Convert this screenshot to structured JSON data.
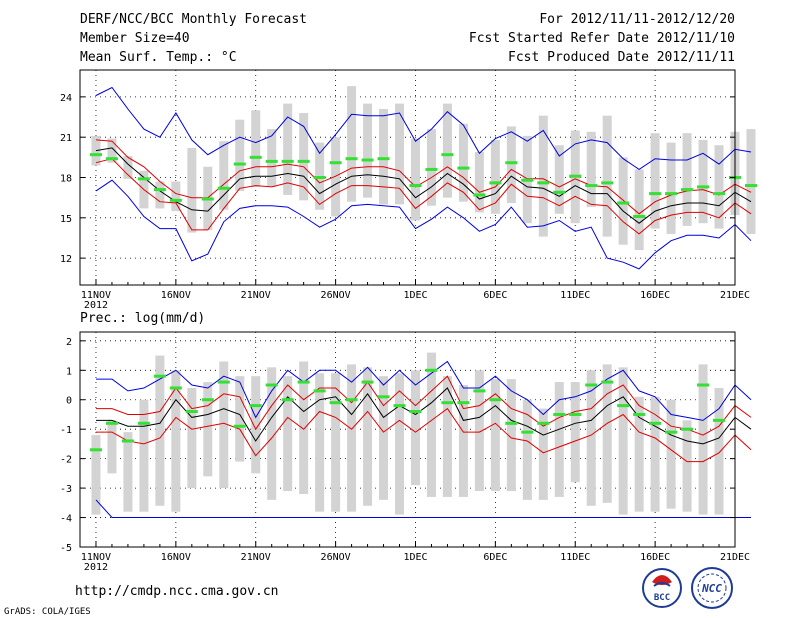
{
  "header": {
    "title": "DERF/NCC/BCC Monthly Forecast",
    "member_size": "Member Size=40",
    "variable": "Mean Surf. Temp.: °C",
    "period": "For 2012/11/11-2012/12/20",
    "started": "Fcst Started Refer Date 2012/11/10",
    "produced": "Fcst Produced Date 2012/11/11"
  },
  "footer": {
    "url": "http://cmdp.ncc.cma.gov.cn",
    "credit": "GrADS: COLA/IGES",
    "logo_bcc": "BCC",
    "logo_ncc": "NCC"
  },
  "colors": {
    "box": "#d3d3d3",
    "max": "#0000e0",
    "upper": "#e00000",
    "mean": "#000000",
    "median": "#33e033"
  },
  "chart_data": [
    {
      "type": "box",
      "title": "Mean Surf. Temp.: °C",
      "x_ticks": [
        "11NOV",
        "16NOV",
        "21NOV",
        "26NOV",
        "1DEC",
        "6DEC",
        "11DEC",
        "16DEC",
        "21DEC"
      ],
      "x_tick_days": [
        0,
        5,
        10,
        15,
        20,
        25,
        30,
        35,
        40
      ],
      "year_label": "2012",
      "ylim": [
        10,
        26
      ],
      "y_ticks": [
        12,
        15,
        18,
        21,
        24
      ],
      "series": [
        {
          "name": "max",
          "values": [
            24.1,
            24.7,
            23.1,
            21.6,
            21.0,
            22.8,
            20.8,
            19.7,
            20.4,
            21.0,
            20.6,
            21.1,
            22.5,
            21.8,
            19.8,
            21.2,
            22.7,
            22.6,
            22.6,
            22.8,
            20.7,
            21.6,
            22.9,
            21.9,
            19.8,
            20.9,
            21.4,
            20.7,
            21.5,
            19.6,
            20.5,
            20.8,
            20.6,
            19.4,
            18.6,
            19.4,
            19.3,
            19.3,
            19.8,
            19.0,
            20.1,
            19.9
          ]
        },
        {
          "name": "upper",
          "values": [
            20.8,
            20.7,
            19.5,
            18.8,
            17.7,
            16.8,
            16.5,
            16.5,
            17.5,
            18.5,
            18.8,
            18.8,
            19.0,
            18.8,
            17.6,
            18.1,
            18.7,
            18.8,
            18.8,
            18.5,
            17.3,
            18.0,
            18.8,
            18.0,
            16.9,
            17.3,
            18.6,
            17.9,
            17.9,
            17.3,
            17.9,
            17.4,
            17.3,
            16.3,
            15.3,
            16.2,
            16.7,
            17.0,
            17.1,
            16.7,
            17.5,
            16.9
          ]
        },
        {
          "name": "mean",
          "values": [
            20.0,
            20.2,
            19.0,
            18.0,
            17.0,
            16.2,
            15.6,
            15.5,
            16.7,
            17.9,
            18.1,
            18.1,
            18.3,
            18.1,
            16.8,
            17.5,
            18.1,
            18.2,
            18.1,
            17.9,
            16.5,
            17.3,
            18.3,
            17.5,
            16.4,
            16.8,
            18.1,
            17.3,
            17.2,
            16.6,
            17.4,
            16.8,
            16.8,
            15.5,
            14.6,
            15.5,
            15.9,
            16.1,
            16.1,
            15.9,
            16.9,
            16.2
          ]
        },
        {
          "name": "lower",
          "values": [
            19.1,
            19.4,
            18.2,
            17.1,
            16.2,
            16.1,
            14.1,
            14.1,
            15.7,
            17.2,
            17.4,
            17.3,
            17.6,
            17.3,
            16.0,
            16.8,
            17.4,
            17.4,
            17.3,
            17.2,
            15.7,
            16.6,
            17.6,
            16.9,
            15.6,
            16.1,
            17.5,
            16.6,
            16.5,
            15.9,
            16.6,
            16.0,
            15.9,
            14.7,
            13.8,
            14.8,
            15.2,
            15.4,
            15.4,
            15.0,
            16.1,
            15.3
          ]
        },
        {
          "name": "min",
          "values": [
            17.0,
            17.8,
            16.6,
            15.1,
            14.2,
            14.2,
            11.8,
            12.3,
            14.7,
            15.7,
            15.9,
            15.9,
            15.8,
            15.1,
            14.3,
            14.9,
            15.9,
            16.0,
            15.9,
            15.8,
            14.2,
            14.9,
            15.8,
            15.0,
            14.0,
            14.5,
            15.8,
            14.3,
            14.4,
            14.8,
            14.0,
            14.3,
            12.0,
            11.7,
            11.2,
            12.4,
            13.3,
            13.7,
            13.7,
            13.5,
            14.5,
            13.3
          ]
        },
        {
          "name": "median",
          "values": [
            19.7,
            19.4,
            null,
            17.9,
            17.1,
            16.3,
            null,
            16.4,
            17.2,
            19.0,
            19.5,
            19.2,
            19.2,
            19.2,
            18.0,
            19.1,
            19.4,
            19.3,
            19.4,
            null,
            17.4,
            18.6,
            19.7,
            18.7,
            16.7,
            17.6,
            19.1,
            17.8,
            17.6,
            16.9,
            18.1,
            17.4,
            17.6,
            16.1,
            15.1,
            16.8,
            16.8,
            17.1,
            17.3,
            16.8,
            18.0,
            17.4
          ]
        },
        {
          "name": "box_top",
          "values": [
            21.1,
            20.9,
            19.6,
            18.5,
            17.7,
            17.7,
            20.2,
            18.8,
            20.7,
            22.3,
            23.0,
            21.6,
            23.5,
            22.8,
            20.6,
            21.0,
            24.8,
            23.5,
            23.1,
            23.5,
            20.9,
            21.6,
            23.5,
            22.0,
            19.9,
            20.8,
            21.8,
            21.1,
            22.6,
            20.4,
            21.5,
            21.4,
            22.6,
            19.5,
            18.6,
            21.3,
            20.6,
            21.3,
            20.8,
            20.4,
            21.4,
            21.6
          ]
        },
        {
          "name": "box_bottom",
          "values": [
            18.9,
            19.1,
            17.9,
            15.7,
            15.7,
            15.5,
            13.9,
            14.1,
            15.6,
            17.0,
            17.3,
            17.3,
            16.7,
            16.3,
            15.6,
            15.1,
            16.2,
            16.5,
            16.0,
            16.0,
            14.8,
            15.9,
            16.5,
            16.2,
            15.4,
            15.3,
            16.1,
            14.6,
            13.6,
            15.3,
            14.6,
            15.8,
            13.6,
            13.0,
            12.6,
            14.2,
            13.8,
            14.4,
            14.6,
            14.2,
            15.2,
            13.8
          ]
        }
      ]
    },
    {
      "type": "box",
      "title": "Prec.: log(mm/d)",
      "x_ticks": [
        "11NOV",
        "16NOV",
        "21NOV",
        "26NOV",
        "1DEC",
        "6DEC",
        "11DEC",
        "16DEC",
        "21DEC"
      ],
      "x_tick_days": [
        0,
        5,
        10,
        15,
        20,
        25,
        30,
        35,
        40
      ],
      "year_label": "2012",
      "ylim": [
        -5,
        2.3
      ],
      "y_ticks": [
        -5,
        -4,
        -3,
        -2,
        -1,
        0,
        1,
        2
      ],
      "series": [
        {
          "name": "max",
          "values": [
            0.7,
            0.7,
            0.3,
            0.4,
            0.7,
            1.0,
            0.5,
            0.4,
            0.8,
            0.6,
            -0.6,
            0.3,
            1.0,
            0.6,
            1.0,
            1.0,
            0.6,
            1.1,
            0.5,
            1.0,
            0.5,
            0.9,
            1.3,
            0.4,
            0.4,
            0.8,
            0.3,
            0.0,
            -0.5,
            0.0,
            0.1,
            0.3,
            0.7,
            1.0,
            0.3,
            0.1,
            -0.5,
            -0.6,
            -0.7,
            -0.3,
            0.5,
            0.0
          ]
        },
        {
          "name": "upper",
          "values": [
            -0.3,
            -0.3,
            -0.5,
            -0.5,
            -0.4,
            0.4,
            -0.3,
            -0.2,
            0.2,
            0.1,
            -1.0,
            -0.2,
            0.5,
            0.0,
            0.4,
            0.4,
            -0.1,
            0.6,
            -0.2,
            0.3,
            -0.2,
            0.3,
            0.8,
            -0.3,
            -0.2,
            0.2,
            -0.3,
            -0.5,
            -0.9,
            -0.6,
            -0.4,
            -0.3,
            0.2,
            0.5,
            -0.2,
            -0.5,
            -0.9,
            -1.0,
            -1.2,
            -0.9,
            -0.2,
            -0.6
          ]
        },
        {
          "name": "mean",
          "values": [
            -0.7,
            -0.7,
            -0.9,
            -0.9,
            -0.8,
            0.0,
            -0.6,
            -0.5,
            -0.3,
            -0.5,
            -1.4,
            -0.6,
            0.1,
            -0.4,
            0.0,
            0.1,
            -0.5,
            0.2,
            -0.6,
            -0.2,
            -0.5,
            -0.1,
            0.4,
            -0.7,
            -0.6,
            -0.2,
            -0.7,
            -0.9,
            -1.2,
            -1.0,
            -0.8,
            -0.7,
            -0.2,
            0.1,
            -0.6,
            -0.9,
            -1.2,
            -1.4,
            -1.5,
            -1.3,
            -0.6,
            -1.0
          ]
        },
        {
          "name": "lower",
          "values": [
            -1.1,
            -1.1,
            -1.4,
            -1.5,
            -1.3,
            -0.6,
            -1.0,
            -0.9,
            -0.8,
            -1.0,
            -1.9,
            -1.3,
            -0.6,
            -1.0,
            -0.4,
            -0.6,
            -1.0,
            -0.4,
            -1.1,
            -0.7,
            -1.1,
            -0.7,
            -0.3,
            -1.1,
            -1.1,
            -0.8,
            -1.3,
            -1.4,
            -1.8,
            -1.6,
            -1.4,
            -1.2,
            -0.8,
            -0.5,
            -1.1,
            -1.3,
            -1.7,
            -2.1,
            -2.1,
            -1.8,
            -1.2,
            -1.7
          ]
        },
        {
          "name": "min",
          "values": [
            -3.4,
            -4.0,
            -4.0,
            -4.0,
            -4.0,
            -4.0,
            -4.0,
            -4.0,
            -4.0,
            -4.0,
            -4.0,
            -4.0,
            -4.0,
            -4.0,
            -4.0,
            -4.0,
            -4.0,
            -4.0,
            -4.0,
            -4.0,
            -4.0,
            -4.0,
            -4.0,
            -4.0,
            -4.0,
            -4.0,
            -4.0,
            -4.0,
            -4.0,
            -4.0,
            -4.0,
            -4.0,
            -4.0,
            -4.0,
            -4.0,
            -4.0,
            -4.0,
            -4.0,
            -4.0,
            -4.0,
            -4.0,
            -4.0
          ]
        },
        {
          "name": "median",
          "values": [
            -1.7,
            -0.8,
            -1.4,
            -0.8,
            0.8,
            0.4,
            -0.4,
            0.0,
            0.6,
            -0.9,
            -0.2,
            0.5,
            0.0,
            0.6,
            0.3,
            -0.1,
            0.0,
            0.6,
            0.1,
            -0.2,
            -0.4,
            1.0,
            -0.1,
            -0.1,
            0.3,
            0.0,
            -0.8,
            -1.1,
            -0.8,
            -0.5,
            -0.5,
            0.5,
            0.6,
            -0.2,
            -0.5,
            -0.8,
            -1.1,
            -1.0,
            0.5,
            -0.7,
            null,
            null
          ]
        },
        {
          "name": "box_top",
          "values": [
            -1.2,
            -0.7,
            -1.1,
            0.0,
            1.5,
            1.0,
            0.4,
            0.6,
            1.3,
            0.8,
            0.8,
            1.1,
            0.8,
            1.3,
            0.9,
            0.9,
            1.2,
            1.1,
            0.8,
            0.9,
            1.0,
            1.6,
            0.8,
            0.5,
            1.0,
            0.7,
            0.7,
            0.0,
            -0.3,
            0.6,
            0.6,
            1.0,
            1.2,
            1.1,
            0.1,
            0.1,
            0.0,
            -0.7,
            1.2,
            0.4,
            null,
            null
          ]
        },
        {
          "name": "box_bottom",
          "values": [
            -3.9,
            -2.5,
            -3.8,
            -3.8,
            -3.6,
            -3.8,
            -3.0,
            -2.6,
            -3.0,
            -2.1,
            -2.5,
            -3.4,
            -3.1,
            -3.2,
            -3.8,
            -3.8,
            -3.8,
            -3.6,
            -3.4,
            -3.9,
            -2.9,
            -3.3,
            -3.3,
            -3.3,
            -3.1,
            -3.1,
            -3.1,
            -3.4,
            -3.4,
            -3.3,
            -2.8,
            -3.6,
            -3.5,
            -3.9,
            -3.8,
            -3.8,
            -3.7,
            -3.8,
            -3.9,
            -3.9,
            null,
            null
          ]
        }
      ]
    }
  ]
}
